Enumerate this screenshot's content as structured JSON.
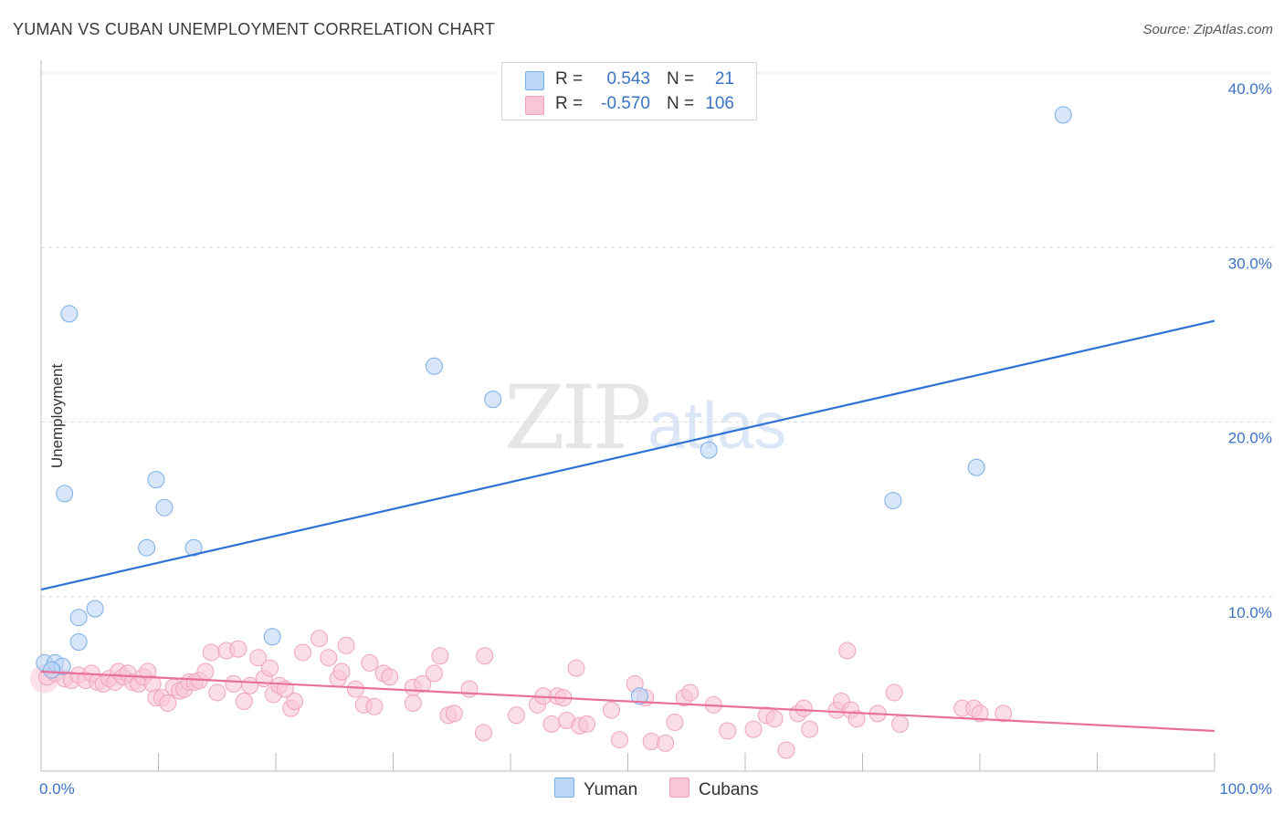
{
  "title": "YUMAN VS CUBAN UNEMPLOYMENT CORRELATION CHART",
  "source": "Source: ZipAtlas.com",
  "watermark": {
    "main": "ZIP",
    "sub": "atlas"
  },
  "legend": [
    {
      "r_label": "R =",
      "r_value": "0.543",
      "n_label": "N =",
      "n_value": "21",
      "color": "#7aaee8"
    },
    {
      "r_label": "R =",
      "r_value": "-0.570",
      "n_label": "N =",
      "n_value": "106",
      "color": "#f0a3bd"
    }
  ],
  "bottom_legend": [
    {
      "label": "Yuman",
      "color": "#bcd6f5"
    },
    {
      "label": "Cubans",
      "color": "#f9c6d6"
    }
  ],
  "chart_data": {
    "type": "scatter",
    "title": "YUMAN VS CUBAN UNEMPLOYMENT CORRELATION CHART",
    "xlabel": "",
    "ylabel": "Unemployment",
    "xlim": [
      0,
      100
    ],
    "ylim": [
      0,
      40
    ],
    "x_tick_labels": [
      "0.0%",
      "100.0%"
    ],
    "y_ticks": [
      10,
      20,
      30,
      40
    ],
    "y_tick_labels": [
      "10.0%",
      "20.0%",
      "30.0%",
      "40.0%"
    ],
    "grid": true,
    "legend_position": "top-center",
    "series": [
      {
        "name": "Yuman",
        "color": "#7aaee8",
        "fill": "#bcd6f5",
        "line_color": "#2f72d6",
        "trendline": {
          "x": [
            0,
            100
          ],
          "y": [
            10.4,
            25.8
          ]
        },
        "points": [
          {
            "x": 0.3,
            "y": 6.2
          },
          {
            "x": 1.2,
            "y": 6.2
          },
          {
            "x": 1.8,
            "y": 6.0
          },
          {
            "x": 2.0,
            "y": 15.9
          },
          {
            "x": 2.4,
            "y": 26.2
          },
          {
            "x": 3.2,
            "y": 7.4
          },
          {
            "x": 3.2,
            "y": 8.8
          },
          {
            "x": 4.6,
            "y": 9.3
          },
          {
            "x": 9.0,
            "y": 12.8
          },
          {
            "x": 9.8,
            "y": 16.7
          },
          {
            "x": 10.5,
            "y": 15.1
          },
          {
            "x": 13.0,
            "y": 12.8
          },
          {
            "x": 19.7,
            "y": 7.7
          },
          {
            "x": 33.5,
            "y": 23.2
          },
          {
            "x": 38.5,
            "y": 21.3
          },
          {
            "x": 51.0,
            "y": 4.3
          },
          {
            "x": 56.9,
            "y": 18.4
          },
          {
            "x": 72.6,
            "y": 15.5
          },
          {
            "x": 79.7,
            "y": 17.4
          },
          {
            "x": 87.1,
            "y": 37.6
          },
          {
            "x": 0.9,
            "y": 5.8
          }
        ]
      },
      {
        "name": "Cubans",
        "color": "#f0a3bd",
        "fill": "#f9c6d6",
        "line_color": "#e8709a",
        "trendline": {
          "x": [
            0,
            100
          ],
          "y": [
            5.7,
            2.3
          ]
        },
        "points": [
          {
            "x": 0.5,
            "y": 5.4
          },
          {
            "x": 1.2,
            "y": 5.6
          },
          {
            "x": 2.0,
            "y": 5.3
          },
          {
            "x": 2.6,
            "y": 5.2
          },
          {
            "x": 3.2,
            "y": 5.5
          },
          {
            "x": 3.8,
            "y": 5.2
          },
          {
            "x": 4.3,
            "y": 5.6
          },
          {
            "x": 4.8,
            "y": 5.1
          },
          {
            "x": 5.3,
            "y": 5.0
          },
          {
            "x": 5.8,
            "y": 5.3
          },
          {
            "x": 6.3,
            "y": 5.1
          },
          {
            "x": 6.6,
            "y": 5.7
          },
          {
            "x": 7.0,
            "y": 5.4
          },
          {
            "x": 7.4,
            "y": 5.6
          },
          {
            "x": 7.8,
            "y": 5.1
          },
          {
            "x": 8.3,
            "y": 5.0
          },
          {
            "x": 8.7,
            "y": 5.4
          },
          {
            "x": 9.1,
            "y": 5.7
          },
          {
            "x": 9.5,
            "y": 5.0
          },
          {
            "x": 9.8,
            "y": 4.2
          },
          {
            "x": 10.3,
            "y": 4.2
          },
          {
            "x": 10.8,
            "y": 3.9
          },
          {
            "x": 11.3,
            "y": 4.8
          },
          {
            "x": 11.8,
            "y": 4.6
          },
          {
            "x": 12.2,
            "y": 4.7
          },
          {
            "x": 12.6,
            "y": 5.1
          },
          {
            "x": 13.1,
            "y": 5.1
          },
          {
            "x": 13.5,
            "y": 5.2
          },
          {
            "x": 14.0,
            "y": 5.7
          },
          {
            "x": 14.5,
            "y": 6.8
          },
          {
            "x": 15.0,
            "y": 4.5
          },
          {
            "x": 15.8,
            "y": 6.9
          },
          {
            "x": 16.4,
            "y": 5.0
          },
          {
            "x": 16.8,
            "y": 7.0
          },
          {
            "x": 17.3,
            "y": 4.0
          },
          {
            "x": 17.8,
            "y": 4.9
          },
          {
            "x": 18.5,
            "y": 6.5
          },
          {
            "x": 19.0,
            "y": 5.3
          },
          {
            "x": 19.5,
            "y": 5.9
          },
          {
            "x": 19.8,
            "y": 4.4
          },
          {
            "x": 20.3,
            "y": 4.9
          },
          {
            "x": 20.8,
            "y": 4.7
          },
          {
            "x": 21.3,
            "y": 3.6
          },
          {
            "x": 21.6,
            "y": 4.0
          },
          {
            "x": 22.3,
            "y": 6.8
          },
          {
            "x": 23.7,
            "y": 7.6
          },
          {
            "x": 24.5,
            "y": 6.5
          },
          {
            "x": 25.3,
            "y": 5.3
          },
          {
            "x": 25.6,
            "y": 5.7
          },
          {
            "x": 26.0,
            "y": 7.2
          },
          {
            "x": 26.8,
            "y": 4.7
          },
          {
            "x": 27.5,
            "y": 3.8
          },
          {
            "x": 28.0,
            "y": 6.2
          },
          {
            "x": 28.4,
            "y": 3.7
          },
          {
            "x": 29.2,
            "y": 5.6
          },
          {
            "x": 29.7,
            "y": 5.4
          },
          {
            "x": 31.7,
            "y": 3.9
          },
          {
            "x": 31.7,
            "y": 4.8
          },
          {
            "x": 32.5,
            "y": 5.0
          },
          {
            "x": 33.5,
            "y": 5.6
          },
          {
            "x": 34.0,
            "y": 6.6
          },
          {
            "x": 34.7,
            "y": 3.2
          },
          {
            "x": 35.2,
            "y": 3.3
          },
          {
            "x": 36.5,
            "y": 4.7
          },
          {
            "x": 37.7,
            "y": 2.2
          },
          {
            "x": 37.8,
            "y": 6.6
          },
          {
            "x": 40.5,
            "y": 3.2
          },
          {
            "x": 42.3,
            "y": 3.8
          },
          {
            "x": 42.8,
            "y": 4.3
          },
          {
            "x": 43.5,
            "y": 2.7
          },
          {
            "x": 44.0,
            "y": 4.3
          },
          {
            "x": 44.5,
            "y": 4.2
          },
          {
            "x": 44.8,
            "y": 2.9
          },
          {
            "x": 45.6,
            "y": 5.9
          },
          {
            "x": 45.9,
            "y": 2.6
          },
          {
            "x": 46.5,
            "y": 2.7
          },
          {
            "x": 48.6,
            "y": 3.5
          },
          {
            "x": 49.3,
            "y": 1.8
          },
          {
            "x": 50.6,
            "y": 5.0
          },
          {
            "x": 51.5,
            "y": 4.2
          },
          {
            "x": 52.0,
            "y": 1.7
          },
          {
            "x": 53.2,
            "y": 1.6
          },
          {
            "x": 54.0,
            "y": 2.8
          },
          {
            "x": 54.8,
            "y": 4.2
          },
          {
            "x": 55.3,
            "y": 4.5
          },
          {
            "x": 57.3,
            "y": 3.8
          },
          {
            "x": 58.5,
            "y": 2.3
          },
          {
            "x": 60.7,
            "y": 2.4
          },
          {
            "x": 61.8,
            "y": 3.2
          },
          {
            "x": 62.5,
            "y": 3.0
          },
          {
            "x": 63.5,
            "y": 1.2
          },
          {
            "x": 64.5,
            "y": 3.3
          },
          {
            "x": 65.0,
            "y": 3.6
          },
          {
            "x": 65.5,
            "y": 2.4
          },
          {
            "x": 67.8,
            "y": 3.5
          },
          {
            "x": 68.2,
            "y": 4.0
          },
          {
            "x": 68.7,
            "y": 6.9
          },
          {
            "x": 69.0,
            "y": 3.5
          },
          {
            "x": 69.5,
            "y": 3.0
          },
          {
            "x": 71.3,
            "y": 3.3
          },
          {
            "x": 72.7,
            "y": 4.5
          },
          {
            "x": 73.2,
            "y": 2.7
          },
          {
            "x": 78.5,
            "y": 3.6
          },
          {
            "x": 79.5,
            "y": 3.6
          },
          {
            "x": 80.0,
            "y": 3.3
          },
          {
            "x": 82.0,
            "y": 3.3
          }
        ]
      }
    ]
  }
}
